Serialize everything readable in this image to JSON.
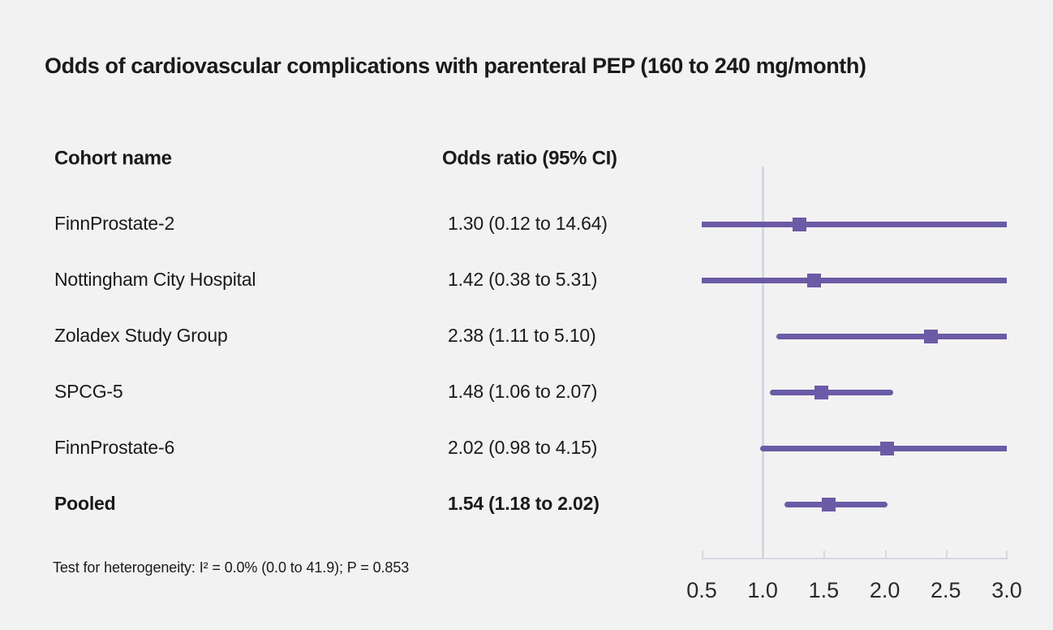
{
  "chart_data": {
    "type": "forest",
    "title": "Odds of cardiovascular complications with parenteral PEP (160 to 240 mg/month)",
    "columns": [
      "Cohort name",
      "Odds ratio (95% CI)"
    ],
    "rows": [
      {
        "label": "FinnProstate-2",
        "display": "1.30 (0.12 to 14.64)",
        "est": 1.3,
        "lo": 0.12,
        "hi": 14.64,
        "bold": false
      },
      {
        "label": "Nottingham City Hospital",
        "display": "1.42 (0.38 to 5.31)",
        "est": 1.42,
        "lo": 0.38,
        "hi": 5.31,
        "bold": false
      },
      {
        "label": "Zoladex Study Group",
        "display": "2.38 (1.11 to 5.10)",
        "est": 2.38,
        "lo": 1.11,
        "hi": 5.1,
        "bold": false
      },
      {
        "label": "SPCG-5",
        "display": "1.48 (1.06 to 2.07)",
        "est": 1.48,
        "lo": 1.06,
        "hi": 2.07,
        "bold": false
      },
      {
        "label": "FinnProstate-6",
        "display": "2.02 (0.98 to 4.15)",
        "est": 2.02,
        "lo": 0.98,
        "hi": 4.15,
        "bold": false
      },
      {
        "label": "Pooled",
        "display": "1.54 (1.18 to 2.02)",
        "est": 1.54,
        "lo": 1.18,
        "hi": 2.02,
        "bold": true
      }
    ],
    "axis": {
      "min": 0.5,
      "max": 3.0,
      "ticks": [
        0.5,
        1.0,
        1.5,
        2.0,
        2.5,
        3.0
      ],
      "tick_labels": [
        "0.5",
        "1.0",
        "1.5",
        "2.0",
        "2.5",
        "3.0"
      ],
      "reference_value": 1.0,
      "scale": "linear",
      "grid": false,
      "legend": "none"
    },
    "footnote": "Test for heterogeneity: I² = 0.0% (0.0 to 41.9); P = 0.853",
    "colors": {
      "marker": "#6b5aa6",
      "ci_line": "#6b5aa6",
      "reference_line": "#d4d8e0",
      "axis": "#d6d9df",
      "background": "#f2f2f2",
      "text": "#1a1a1a"
    }
  }
}
